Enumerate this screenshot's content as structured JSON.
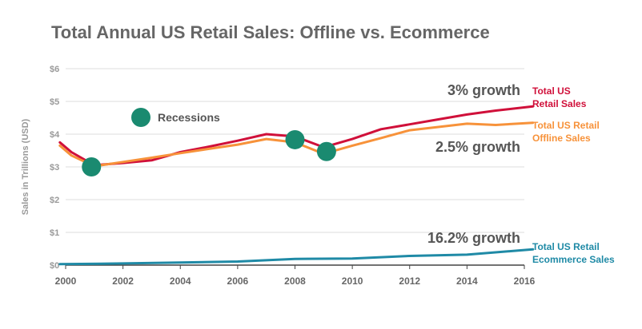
{
  "chart_data": {
    "type": "line",
    "title": "Total Annual US Retail Sales: Offline vs. Ecommerce",
    "ylabel": "Sales in Trillions (USD)",
    "xlim": [
      2000,
      2016
    ],
    "ylim": [
      0,
      6
    ],
    "x_ticks": [
      2000,
      2002,
      2004,
      2006,
      2008,
      2010,
      2012,
      2014,
      2016
    ],
    "x_tick_labels": [
      "2000",
      "2002",
      "2004",
      "2006",
      "2008",
      "2010",
      "2012",
      "2014",
      "2016"
    ],
    "y_ticks": [
      0,
      1,
      2,
      3,
      4,
      5,
      6
    ],
    "y_tick_labels": [
      "$0",
      "$1",
      "$2",
      "$3",
      "$4",
      "$5",
      "$6"
    ],
    "grid": true,
    "series": [
      {
        "name": "Total US Retail Sales",
        "label_lines": [
          "Total US",
          "Retail Sales"
        ],
        "growth_label": "3% growth",
        "color": "#d0103a",
        "x": [
          1999.8,
          2000.2,
          2001,
          2002,
          2003,
          2004,
          2005,
          2006,
          2007,
          2008,
          2009,
          2010,
          2011,
          2012,
          2013,
          2014,
          2015,
          2016.3
        ],
        "y": [
          3.75,
          3.45,
          3.05,
          3.12,
          3.2,
          3.45,
          3.62,
          3.8,
          4.0,
          3.93,
          3.6,
          3.85,
          4.15,
          4.3,
          4.45,
          4.6,
          4.72,
          4.85
        ]
      },
      {
        "name": "Total US Retail Offline Sales",
        "label_lines": [
          "Total US Retail",
          "Offline Sales"
        ],
        "growth_label": "2.5% growth",
        "color": "#f7923a",
        "x": [
          1999.8,
          2000.2,
          2001,
          2002,
          2003,
          2004,
          2005,
          2006,
          2007,
          2008,
          2009,
          2010,
          2011,
          2012,
          2013,
          2014,
          2015,
          2016.3
        ],
        "y": [
          3.65,
          3.35,
          3.02,
          3.15,
          3.28,
          3.42,
          3.55,
          3.68,
          3.85,
          3.75,
          3.4,
          3.65,
          3.88,
          4.12,
          4.22,
          4.32,
          4.28,
          4.35
        ]
      },
      {
        "name": "Total US Retail Ecommerce Sales",
        "label_lines": [
          "Total US Retail",
          "Ecommerce Sales"
        ],
        "growth_label": "16.2% growth",
        "color": "#1f8aa6",
        "x": [
          1999.8,
          2002,
          2004,
          2006,
          2008,
          2010,
          2012,
          2014,
          2016.3
        ],
        "y": [
          0.03,
          0.05,
          0.08,
          0.11,
          0.19,
          0.2,
          0.28,
          0.32,
          0.48
        ]
      }
    ],
    "legend": {
      "label": "Recessions",
      "color": "#1a8a70"
    },
    "annotations": [
      {
        "type": "recession-marker",
        "x": 2000.9,
        "y": 3.0
      },
      {
        "type": "recession-marker",
        "x": 2008.0,
        "y": 3.83
      },
      {
        "type": "recession-marker",
        "x": 2009.1,
        "y": 3.47
      }
    ]
  }
}
